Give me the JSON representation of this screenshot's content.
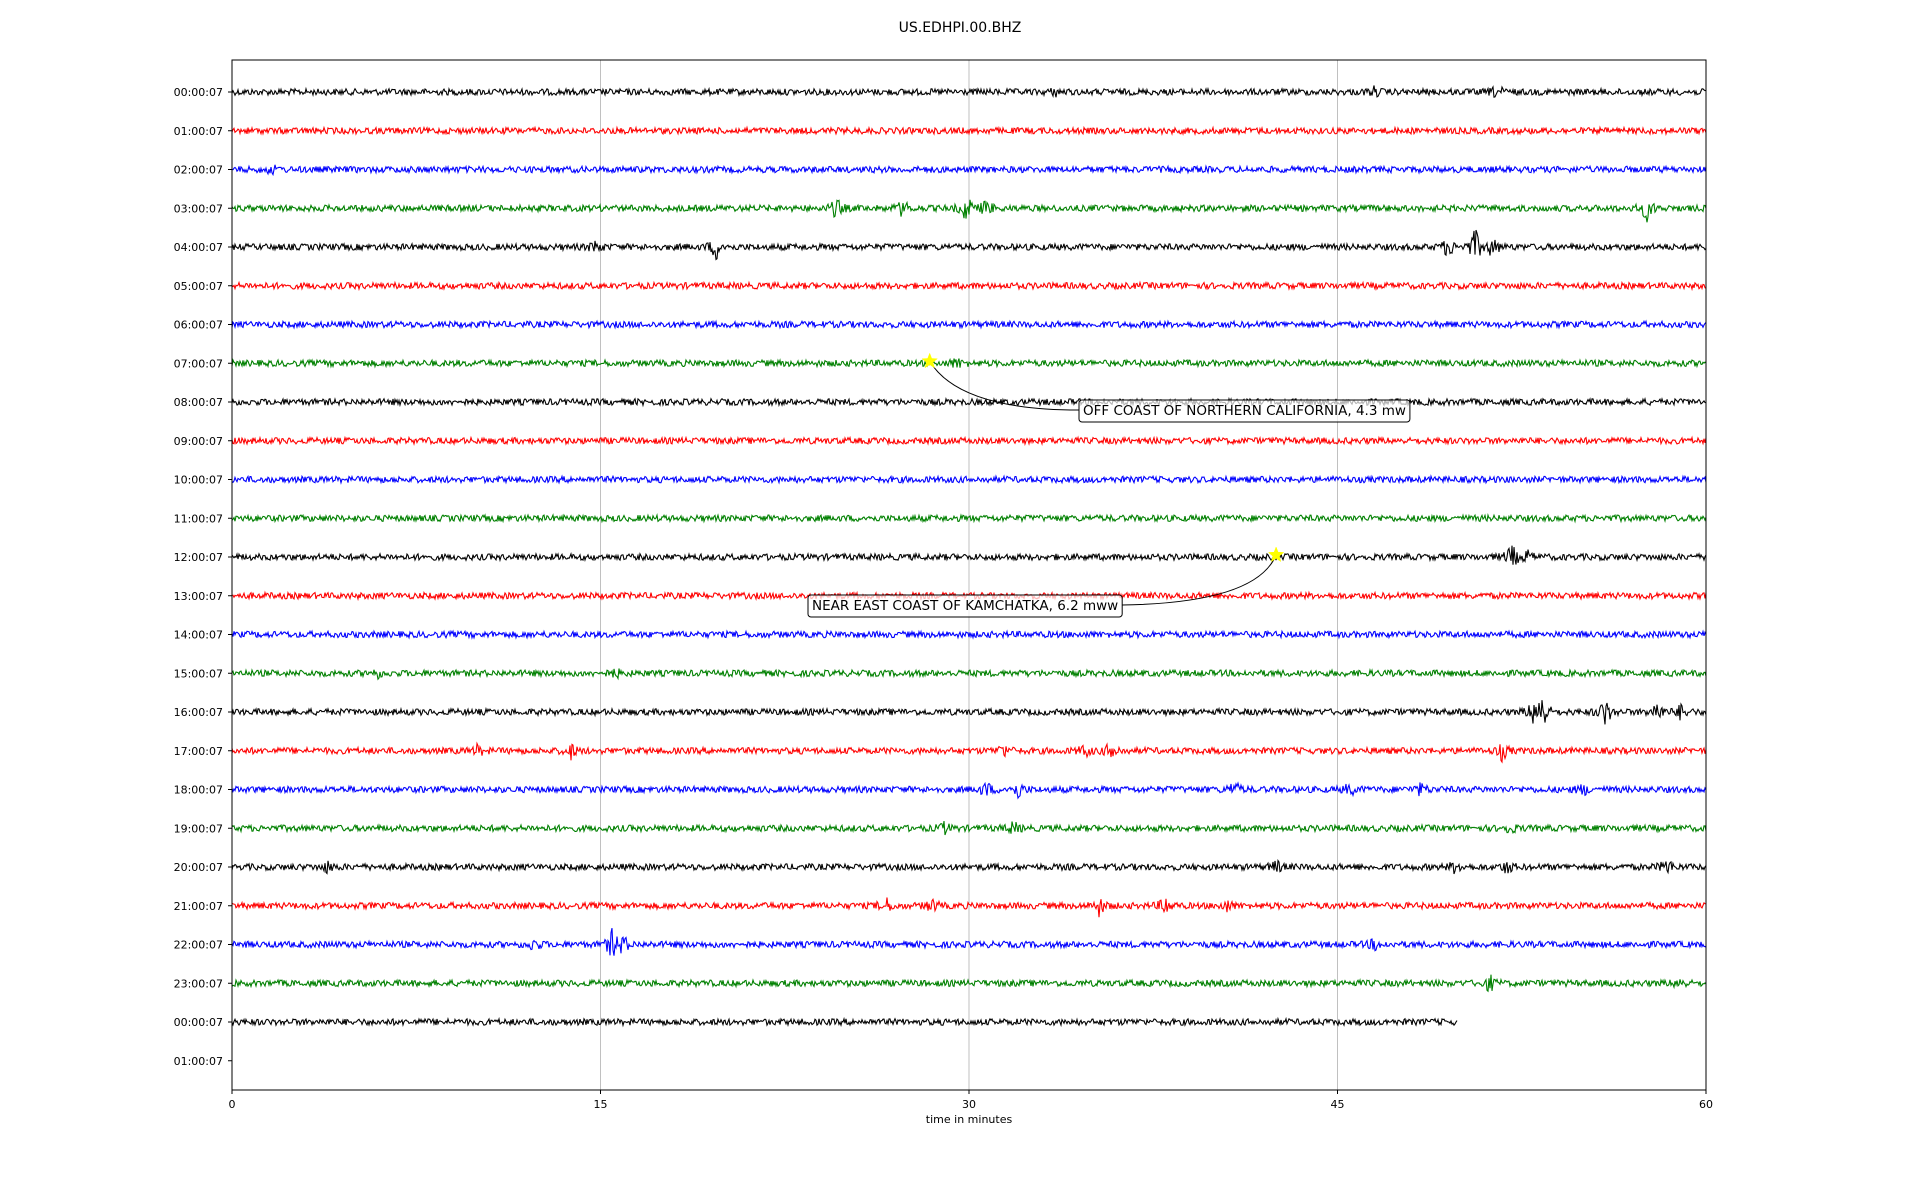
{
  "chart_data": {
    "type": "line",
    "title": "US.EDHPI.00.BHZ",
    "xlabel": "time in minutes",
    "ylabel": "",
    "xlim": [
      0,
      60
    ],
    "x_ticks": [
      "0",
      "15",
      "30",
      "45",
      "60"
    ],
    "x_tick_values": [
      0,
      15,
      30,
      45,
      60
    ],
    "grid_x": true,
    "row_labels": [
      "00:00:07",
      "01:00:07",
      "02:00:07",
      "03:00:07",
      "04:00:07",
      "05:00:07",
      "06:00:07",
      "07:00:07",
      "08:00:07",
      "09:00:07",
      "10:00:07",
      "11:00:07",
      "12:00:07",
      "13:00:07",
      "14:00:07",
      "15:00:07",
      "16:00:07",
      "17:00:07",
      "18:00:07",
      "19:00:07",
      "20:00:07",
      "21:00:07",
      "22:00:07",
      "23:00:07",
      "00:00:07",
      "01:00:07"
    ],
    "trace_colors": [
      "#000000",
      "#ff0000",
      "#0000ff",
      "#008000"
    ],
    "traces": [
      {
        "row": 0,
        "end_minute": 60,
        "events": [
          [
            51.5,
            6
          ],
          [
            33.5,
            3
          ],
          [
            46.5,
            4
          ]
        ]
      },
      {
        "row": 1,
        "end_minute": 60,
        "events": []
      },
      {
        "row": 2,
        "end_minute": 60,
        "events": [
          [
            1.6,
            4
          ]
        ]
      },
      {
        "row": 3,
        "end_minute": 60,
        "events": [
          [
            24.6,
            10
          ],
          [
            27.3,
            8
          ],
          [
            29.9,
            14
          ],
          [
            30.7,
            8
          ],
          [
            57.6,
            12
          ]
        ]
      },
      {
        "row": 4,
        "end_minute": 60,
        "events": [
          [
            14.8,
            6
          ],
          [
            19.7,
            12
          ],
          [
            49.5,
            10
          ],
          [
            50.6,
            18
          ],
          [
            51.3,
            10
          ]
        ]
      },
      {
        "row": 5,
        "end_minute": 60,
        "events": []
      },
      {
        "row": 6,
        "end_minute": 60,
        "events": []
      },
      {
        "row": 7,
        "end_minute": 60,
        "events": [
          [
            29.5,
            5
          ]
        ]
      },
      {
        "row": 8,
        "end_minute": 60,
        "events": []
      },
      {
        "row": 9,
        "end_minute": 60,
        "events": []
      },
      {
        "row": 10,
        "end_minute": 60,
        "events": []
      },
      {
        "row": 11,
        "end_minute": 60,
        "events": []
      },
      {
        "row": 12,
        "end_minute": 60,
        "events": [
          [
            52.1,
            12
          ],
          [
            52.7,
            6
          ]
        ]
      },
      {
        "row": 13,
        "end_minute": 60,
        "events": []
      },
      {
        "row": 14,
        "end_minute": 60,
        "events": []
      },
      {
        "row": 15,
        "end_minute": 60,
        "events": [
          [
            5.9,
            4
          ],
          [
            15.6,
            4
          ]
        ]
      },
      {
        "row": 16,
        "end_minute": 60,
        "events": [
          [
            53.0,
            14
          ],
          [
            53.3,
            24
          ],
          [
            55.9,
            14
          ],
          [
            58.0,
            10
          ],
          [
            59.0,
            8
          ]
        ]
      },
      {
        "row": 17,
        "end_minute": 60,
        "events": [
          [
            10.0,
            5
          ],
          [
            13.8,
            7
          ],
          [
            31.4,
            6
          ],
          [
            34.7,
            6
          ],
          [
            35.8,
            10
          ],
          [
            51.7,
            9
          ]
        ]
      },
      {
        "row": 18,
        "end_minute": 60,
        "events": [
          [
            30.7,
            7
          ],
          [
            32.0,
            8
          ],
          [
            40.8,
            8
          ],
          [
            45.5,
            6
          ],
          [
            48.4,
            6
          ],
          [
            55.0,
            5
          ]
        ]
      },
      {
        "row": 19,
        "end_minute": 60,
        "events": [
          [
            29.0,
            5
          ],
          [
            31.8,
            6
          ],
          [
            52.0,
            5
          ]
        ]
      },
      {
        "row": 20,
        "end_minute": 60,
        "events": [
          [
            3.9,
            5
          ],
          [
            42.5,
            6
          ],
          [
            49.8,
            6
          ],
          [
            51.9,
            6
          ],
          [
            58.4,
            8
          ]
        ]
      },
      {
        "row": 21,
        "end_minute": 60,
        "events": [
          [
            26.6,
            8
          ],
          [
            28.5,
            6
          ],
          [
            35.3,
            9
          ],
          [
            38.0,
            9
          ],
          [
            40.5,
            5
          ]
        ]
      },
      {
        "row": 22,
        "end_minute": 60,
        "events": [
          [
            12.3,
            6
          ],
          [
            15.5,
            16
          ],
          [
            15.9,
            10
          ],
          [
            46.5,
            5
          ]
        ]
      },
      {
        "row": 23,
        "end_minute": 60,
        "events": [
          [
            51.2,
            8
          ],
          [
            58.9,
            5
          ]
        ]
      },
      {
        "row": 24,
        "end_minute": 49.9,
        "events": []
      }
    ],
    "annotations": [
      {
        "text": "OFF COAST OF NORTHERN CALIFORNIA, 4.3 mw",
        "row": 7,
        "minute": 28.4,
        "marker": "star",
        "marker_color": "#ffff00"
      },
      {
        "text": "NEAR EAST COAST OF KAMCHATKA, 6.2 mww",
        "row": 12,
        "minute": 42.5,
        "marker": "star",
        "marker_color": "#ffff00"
      }
    ]
  }
}
